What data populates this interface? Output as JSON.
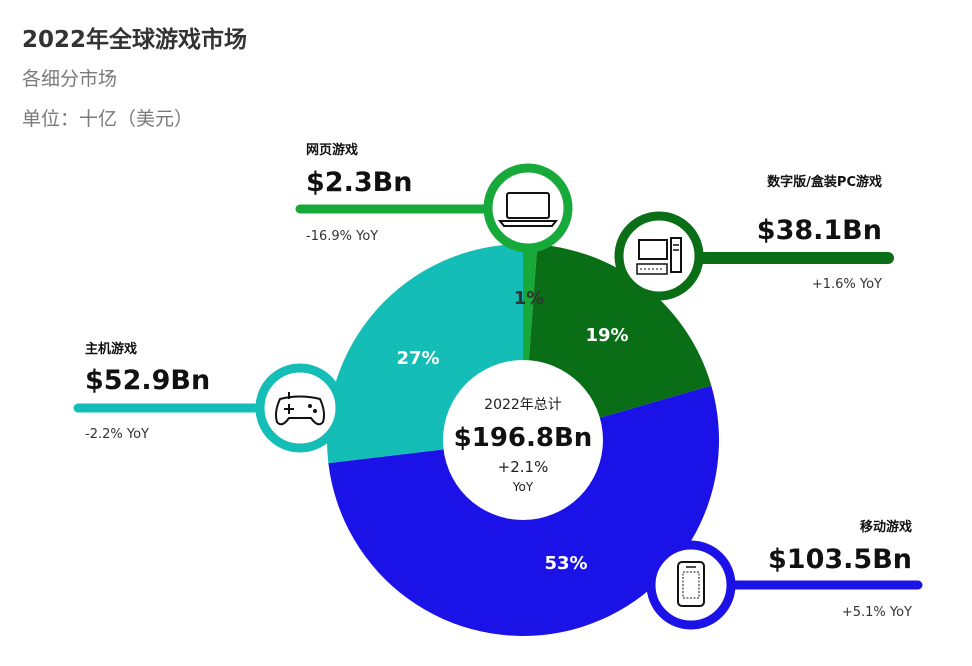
{
  "header": {
    "title": "2022年全球游戏市场",
    "subtitle": "各细分市场",
    "unit": "单位：十亿（美元）"
  },
  "chart_data": {
    "type": "pie",
    "title": "2022年全球游戏市场",
    "subtitle": "各细分市场",
    "unit": "单位：十亿（美元）",
    "center": {
      "label": "2022年总计",
      "total": "$196.8Bn",
      "yoy": "+2.1%",
      "yoy_unit": "YoY",
      "value": 196.8
    },
    "segments": [
      {
        "key": "browser",
        "name": "网页游戏",
        "value": 2.3,
        "value_label": "$2.3Bn",
        "yoy": "-16.9% YoY",
        "percent_label": "1%",
        "color": "#17A93A",
        "icon": "laptop-icon"
      },
      {
        "key": "pc",
        "name": "数字版/盒装PC游戏",
        "value": 38.1,
        "value_label": "$38.1Bn",
        "yoy": "+1.6% YoY",
        "percent_label": "19%",
        "color": "#096E16",
        "icon": "desktop-computer-icon"
      },
      {
        "key": "mobile",
        "name": "移动游戏",
        "value": 103.5,
        "value_label": "$103.5Bn",
        "yoy": "+5.1% YoY",
        "percent_label": "53%",
        "color": "#1A12E6",
        "icon": "smartphone-icon"
      },
      {
        "key": "console",
        "name": "主机游戏",
        "value": 52.9,
        "value_label": "$52.9Bn",
        "yoy": "-2.2% YoY",
        "percent_label": "27%",
        "color": "#14BDB5",
        "icon": "gamepad-icon"
      }
    ]
  }
}
